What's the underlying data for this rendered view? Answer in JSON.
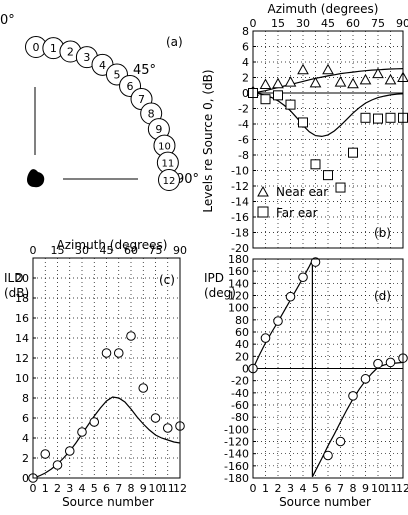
{
  "chart_data": [
    {
      "id": "a",
      "panel_label": "(a)",
      "type": "diagram",
      "angle_labels": [
        "0°",
        "45°",
        "90°"
      ],
      "source_numbers": [
        "0",
        "1",
        "2",
        "3",
        "4",
        "5",
        "6",
        "7",
        "8",
        "9",
        "10",
        "11",
        "12"
      ]
    },
    {
      "id": "b",
      "panel_label": "(b)",
      "type": "scatter",
      "top_axis_label": "Azimuth (degrees)",
      "top_ticks": [
        0,
        15,
        30,
        45,
        60,
        75,
        90
      ],
      "ylabel": "Levels re Source 0, (dB)",
      "ylim": [
        -20,
        8
      ],
      "yticks": [
        8,
        6,
        4,
        2,
        0,
        -2,
        -4,
        -6,
        -8,
        -10,
        -12,
        -14,
        -16,
        -18,
        -20
      ],
      "xlim": [
        0,
        12
      ],
      "legend": [
        {
          "name": "Near ear",
          "marker": "triangle"
        },
        {
          "name": "Far ear",
          "marker": "square"
        }
      ],
      "series": [
        {
          "name": "Near ear",
          "x": [
            0,
            1,
            2,
            3,
            4,
            5,
            6,
            7,
            8,
            9,
            10,
            11,
            12
          ],
          "y": [
            0.2,
            1.1,
            1.2,
            1.4,
            3.0,
            1.3,
            3.0,
            1.4,
            1.2,
            1.7,
            2.5,
            1.7,
            2.0
          ]
        },
        {
          "name": "Far ear",
          "x": [
            0,
            1,
            2,
            3,
            4,
            5,
            6,
            7,
            8,
            9,
            10,
            11,
            12
          ],
          "y": [
            0,
            -0.8,
            -0.3,
            -1.5,
            -3.8,
            -9.2,
            -10.6,
            -12.2,
            -7.7,
            -3.2,
            -3.3,
            -3.2,
            -3.2
          ]
        }
      ],
      "curves": [
        {
          "x": [
            0,
            0.5,
            1,
            1.5,
            2,
            2.5,
            3,
            3.5,
            4,
            4.5,
            5,
            5.5,
            6,
            6.5,
            7,
            7.5,
            8,
            8.5,
            9,
            9.5,
            10,
            10.5,
            11,
            11.5,
            12
          ],
          "y": [
            0,
            0.15,
            0.3,
            0.5,
            0.7,
            0.9,
            1.1,
            1.3,
            1.5,
            1.7,
            1.9,
            2.05,
            2.2,
            2.35,
            2.5,
            2.6,
            2.7,
            2.8,
            2.88,
            2.95,
            3.0,
            3.05,
            3.1,
            3.12,
            3.15
          ]
        },
        {
          "x": [
            0,
            0.5,
            1,
            1.5,
            2,
            2.5,
            3,
            3.5,
            4,
            4.5,
            5,
            5.5,
            6,
            6.5,
            7,
            7.5,
            8,
            8.5,
            9,
            9.5,
            10,
            10.5,
            11,
            11.5,
            12
          ],
          "y": [
            0,
            -0.1,
            -0.3,
            -0.6,
            -1.0,
            -1.6,
            -2.3,
            -3.2,
            -4.2,
            -5.0,
            -5.5,
            -5.6,
            -5.4,
            -4.9,
            -4.2,
            -3.4,
            -2.6,
            -1.9,
            -1.3,
            -0.9,
            -0.6,
            -0.4,
            -0.25,
            -0.15,
            -0.1
          ]
        }
      ]
    },
    {
      "id": "c",
      "panel_label": "(c)",
      "type": "scatter",
      "top_axis_label": "Azimuth (degrees)",
      "top_ticks": [
        0,
        15,
        30,
        45,
        60,
        75,
        90
      ],
      "ylabel_lines": [
        "ILD",
        "(dB)"
      ],
      "xlabel": "Source number",
      "xticks": [
        0,
        1,
        2,
        3,
        4,
        5,
        6,
        7,
        8,
        9,
        10,
        11,
        12
      ],
      "xlim": [
        0,
        12
      ],
      "ylim": [
        0,
        22
      ],
      "yticks": [
        0,
        2,
        4,
        6,
        8,
        10,
        12,
        14,
        16,
        18,
        20
      ],
      "series": [
        {
          "name": "ILD",
          "x": [
            0,
            1,
            2,
            3,
            4,
            5,
            6,
            7,
            8,
            9,
            10,
            11,
            12
          ],
          "y": [
            0,
            2.4,
            1.3,
            2.7,
            4.6,
            5.6,
            12.5,
            12.5,
            14.2,
            9.0,
            6.0,
            5.0,
            5.2
          ]
        }
      ],
      "curves": [
        {
          "x": [
            0,
            0.5,
            1,
            1.5,
            2,
            2.5,
            3,
            3.5,
            4,
            4.5,
            5,
            5.5,
            6,
            6.5,
            7,
            7.5,
            8,
            8.5,
            9,
            9.5,
            10,
            10.5,
            11,
            11.5,
            12
          ],
          "y": [
            0,
            0.2,
            0.5,
            0.9,
            1.4,
            2.0,
            2.7,
            3.5,
            4.4,
            5.3,
            6.2,
            7.0,
            7.7,
            8.1,
            8.0,
            7.6,
            6.9,
            6.1,
            5.4,
            4.8,
            4.3,
            4.0,
            3.8,
            3.6,
            3.5
          ]
        }
      ]
    },
    {
      "id": "d",
      "panel_label": "(d)",
      "type": "scatter",
      "ylabel_lines": [
        "IPD",
        "(deg)"
      ],
      "xlabel": "Source number",
      "xticks": [
        0,
        1,
        2,
        3,
        4,
        5,
        6,
        7,
        8,
        9,
        10,
        11,
        12
      ],
      "xlim": [
        0,
        12
      ],
      "ylim": [
        -180,
        180
      ],
      "yticks": [
        180,
        160,
        140,
        120,
        100,
        80,
        60,
        40,
        20,
        0,
        -20,
        -40,
        -60,
        -80,
        -100,
        -120,
        -140,
        -160,
        -180
      ],
      "series": [
        {
          "name": "IPD",
          "x": [
            0,
            1,
            2,
            3,
            4,
            5,
            6,
            7,
            8,
            9,
            10,
            11,
            12
          ],
          "y": [
            0,
            50,
            78,
            118,
            150,
            175,
            -143,
            -120,
            -45,
            -17,
            8,
            10,
            17
          ]
        }
      ],
      "curves": [
        {
          "x": [
            0,
            0.5,
            1,
            1.5,
            2,
            2.5,
            3,
            3.5,
            4,
            4.5,
            4.75,
            4.75,
            5,
            5.5,
            6,
            6.5,
            7,
            7.5,
            8,
            8.5,
            9,
            9.5,
            10,
            10.5,
            11,
            11.5,
            12
          ],
          "y": [
            0,
            22,
            42,
            60,
            77,
            95,
            113,
            131,
            149,
            168,
            178,
            -178,
            -168,
            -148,
            -127,
            -108,
            -88,
            -68,
            -50,
            -34,
            -20,
            -8,
            2,
            6,
            8,
            9,
            10
          ]
        }
      ]
    }
  ]
}
